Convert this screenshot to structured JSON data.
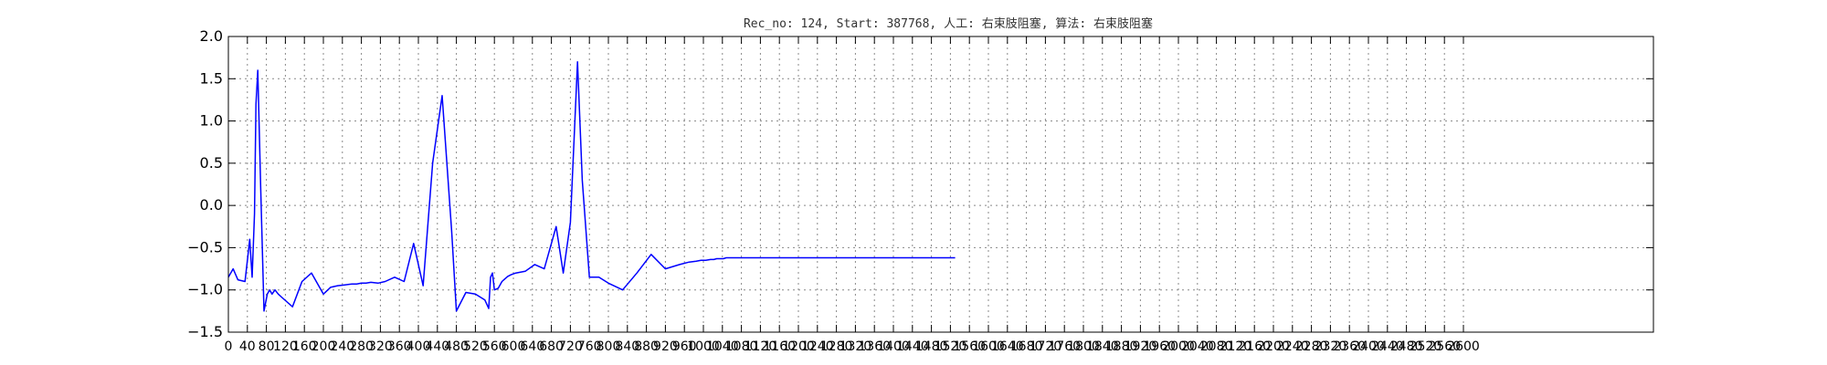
{
  "chart_data": {
    "type": "line",
    "title": "Rec_no: 124, Start: 387768, 人工: 右束肢阻塞, 算法: 右束肢阻塞",
    "xlabel": "",
    "ylabel": "",
    "xlim": [
      0,
      3000
    ],
    "ylim": [
      -1.5,
      2.0
    ],
    "grid": true,
    "x_ticks": [
      0,
      40,
      80,
      120,
      160,
      200,
      240,
      280,
      320,
      360,
      400,
      440,
      480,
      520,
      560,
      600,
      640,
      680,
      720,
      760,
      800,
      840,
      880,
      920,
      960,
      1000,
      1040,
      1080,
      1120,
      1160,
      1200,
      1240,
      1280,
      1320,
      1360,
      1400,
      1440,
      1480,
      1520,
      1560,
      1600,
      1640,
      1680,
      1720,
      1760,
      1800,
      1840,
      1880,
      1920,
      1960,
      2000,
      2040,
      2080,
      2120,
      2160,
      2200,
      2240,
      2280,
      2320,
      2360,
      2400,
      2440,
      2480,
      2520,
      2560,
      2600
    ],
    "y_ticks": [
      2.0,
      1.5,
      1.0,
      0.5,
      0.0,
      -0.5,
      -1.0,
      -1.5
    ],
    "y_tick_labels": [
      "2.0",
      "1.5",
      "1.0",
      "0.5",
      "0.0",
      "−0.5",
      "−1.0",
      "−1.5"
    ],
    "series": [
      {
        "color": "#0000ff",
        "x": [
          0,
          10,
          20,
          35,
          45,
          50,
          55,
          58,
          62,
          68,
          75,
          82,
          87,
          92,
          98,
          105,
          115,
          135,
          155,
          175,
          200,
          215,
          230,
          245,
          260,
          270,
          280,
          290,
          300,
          315,
          330,
          350,
          370,
          390,
          410,
          430,
          450,
          470,
          480,
          500,
          520,
          540,
          548,
          552,
          556,
          560,
          568,
          576,
          582,
          588,
          595,
          605,
          625,
          645,
          665,
          690,
          705,
          720,
          735,
          745,
          760,
          780,
          800,
          830,
          860,
          890,
          920,
          950,
          970,
          985,
          995,
          1005,
          1015,
          1022,
          1028,
          1035,
          1042,
          1048,
          1055,
          1065,
          1075,
          1090,
          1110,
          1130,
          1150,
          1165,
          1185,
          1205,
          1215,
          1225,
          1240,
          1260,
          1280,
          1300,
          1320,
          1350,
          1380,
          1410,
          1440,
          1470,
          1500,
          1530
        ],
        "y": [
          -0.85,
          -0.75,
          -0.88,
          -0.9,
          -0.4,
          -0.85,
          -0.1,
          1.2,
          1.6,
          0.2,
          -1.25,
          -1.05,
          -1.0,
          -1.05,
          -1.0,
          -1.05,
          -1.1,
          -1.2,
          -0.9,
          -0.8,
          -1.05,
          -0.97,
          -0.95,
          -0.94,
          -0.93,
          -0.93,
          -0.92,
          -0.92,
          -0.91,
          -0.92,
          -0.9,
          -0.85,
          -0.9,
          -0.45,
          -0.95,
          0.5,
          1.3,
          -0.3,
          -1.25,
          -1.03,
          -1.05,
          -1.12,
          -1.22,
          -0.85,
          -0.8,
          -1.0,
          -0.98,
          -0.9,
          -0.87,
          -0.84,
          -0.82,
          -0.8,
          -0.78,
          -0.7,
          -0.75,
          -0.25,
          -0.8,
          -0.2,
          1.7,
          0.3,
          -0.85,
          -0.85,
          -0.92,
          -1.0,
          -0.8,
          -0.58,
          -0.75,
          -0.7,
          -0.67,
          -0.66,
          -0.65,
          -0.65,
          -0.64,
          -0.64,
          -0.63,
          -0.63,
          -0.63,
          -0.62,
          -0.62,
          -0.62,
          -0.62,
          -0.62,
          -0.62,
          -0.62,
          -0.62,
          -0.62,
          -0.62,
          -0.62,
          -0.62,
          -0.62,
          -0.62,
          -0.62,
          -0.62,
          -0.62,
          -0.62,
          -0.62,
          -0.62,
          -0.62,
          -0.62,
          -0.62,
          -0.62,
          -0.62
        ]
      }
    ]
  }
}
